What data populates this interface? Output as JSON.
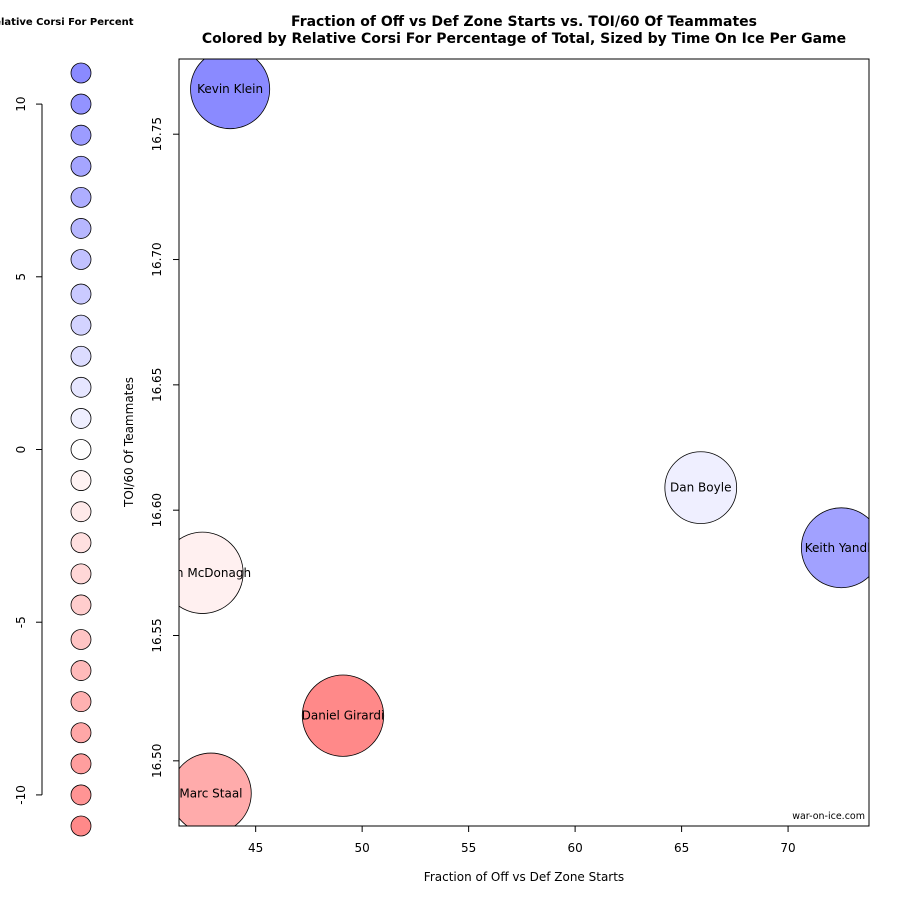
{
  "chart_data": {
    "type": "scatter",
    "title": "Fraction of Off vs Def Zone Starts vs. TOI/60 Of Teammates",
    "subtitle": "Colored by Relative Corsi For Percentage of Total, Sized by Time On Ice Per Game",
    "xlabel": "Fraction of Off vs Def Zone Starts",
    "ylabel": "TOI/60 Of Teammates",
    "xlim": [
      41.4,
      73.8
    ],
    "ylim": [
      16.474,
      16.78
    ],
    "xticks": [
      45,
      50,
      55,
      60,
      65,
      70
    ],
    "yticks": [
      16.5,
      16.55,
      16.6,
      16.65,
      16.7,
      16.75
    ],
    "ytick_labels": [
      "16.50",
      "16.55",
      "16.60",
      "16.65",
      "16.70",
      "16.75"
    ],
    "grid": false,
    "credit": "war-on-ice.com",
    "points": [
      {
        "name": "Kevin Klein",
        "x": 43.8,
        "y": 16.768,
        "size": 1.07,
        "color": "#8a8aff"
      },
      {
        "name": "Dan Boyle",
        "x": 65.9,
        "y": 16.609,
        "size": 0.97,
        "color": "#efefff"
      },
      {
        "name": "Keith Yandle",
        "x": 72.5,
        "y": 16.585,
        "size": 1.08,
        "color": "#a1a1ff"
      },
      {
        "name": "Ryan McDonagh",
        "x": 42.5,
        "y": 16.575,
        "size": 1.1,
        "color": "#fff0f0"
      },
      {
        "name": "Daniel Girardi",
        "x": 49.1,
        "y": 16.518,
        "size": 1.1,
        "color": "#ff8989"
      },
      {
        "name": "Marc Staal",
        "x": 42.9,
        "y": 16.487,
        "size": 1.09,
        "color": "#ffabab"
      }
    ],
    "legend": {
      "title": "Relative Corsi For Percent",
      "placement": "left",
      "range": [
        -10.9,
        10.9
      ],
      "ticks": [
        10,
        5,
        0,
        -5,
        -10
      ],
      "swatches": [
        {
          "value": 10.9,
          "color": "#8a8aff"
        },
        {
          "value": 10.0,
          "color": "#9393ff"
        },
        {
          "value": 9.1,
          "color": "#9c9cff"
        },
        {
          "value": 8.2,
          "color": "#a5a5ff"
        },
        {
          "value": 7.3,
          "color": "#aeaeff"
        },
        {
          "value": 6.4,
          "color": "#b7b7ff"
        },
        {
          "value": 5.5,
          "color": "#c1c1ff"
        },
        {
          "value": 4.5,
          "color": "#cacaff"
        },
        {
          "value": 3.6,
          "color": "#d3d3ff"
        },
        {
          "value": 2.7,
          "color": "#dcdcff"
        },
        {
          "value": 1.8,
          "color": "#e6e6ff"
        },
        {
          "value": 0.9,
          "color": "#efefff"
        },
        {
          "value": 0.0,
          "color": "#ffffff"
        },
        {
          "value": -0.9,
          "color": "#fff3f3"
        },
        {
          "value": -1.8,
          "color": "#ffeaea"
        },
        {
          "value": -2.7,
          "color": "#ffe0e0"
        },
        {
          "value": -3.6,
          "color": "#ffd7d7"
        },
        {
          "value": -4.5,
          "color": "#ffcdcd"
        },
        {
          "value": -5.5,
          "color": "#ffc4c4"
        },
        {
          "value": -6.4,
          "color": "#ffbaba"
        },
        {
          "value": -7.3,
          "color": "#ffb1b1"
        },
        {
          "value": -8.2,
          "color": "#ffa7a7"
        },
        {
          "value": -9.1,
          "color": "#ff9e9e"
        },
        {
          "value": -10.0,
          "color": "#ff9494"
        },
        {
          "value": -10.9,
          "color": "#ff8989"
        }
      ]
    }
  }
}
